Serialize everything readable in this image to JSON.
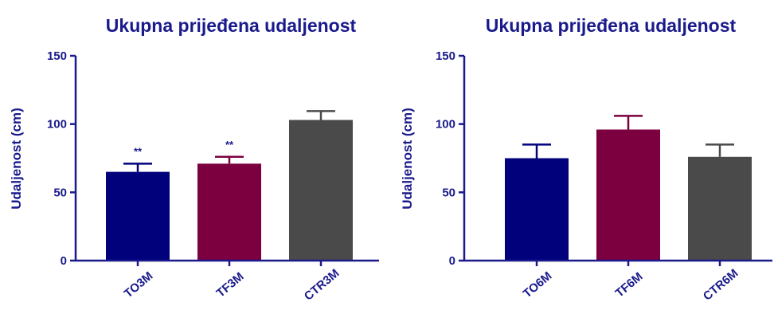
{
  "colors": {
    "text": "#1a1a8c",
    "axis": "#1a1a8c",
    "error": "#1a1a8c"
  },
  "chart_data": [
    {
      "type": "bar",
      "title": "Ukupna prijeđena udaljenost",
      "ylabel": "Udaljenost (cm)",
      "xlabel": "",
      "ylim": [
        0,
        150
      ],
      "yticks": [
        0,
        50,
        100,
        150
      ],
      "categories": [
        "TO3M",
        "TF3M",
        "CTR3M"
      ],
      "values": [
        65,
        71,
        103
      ],
      "errors": [
        6,
        5,
        6.5
      ],
      "annotations": [
        "**",
        "**",
        ""
      ],
      "bar_colors": [
        "#01017c",
        "#7c0040",
        "#4a4a4a"
      ],
      "grid": false,
      "legend": "none"
    },
    {
      "type": "bar",
      "title": "Ukupna prijeđena udaljenost",
      "ylabel": "Udaljenost (cm)",
      "xlabel": "",
      "ylim": [
        0,
        150
      ],
      "yticks": [
        0,
        50,
        100,
        150
      ],
      "categories": [
        "TO6M",
        "TF6M",
        "CTR6M"
      ],
      "values": [
        75,
        96,
        76
      ],
      "errors": [
        10,
        10,
        9
      ],
      "annotations": [
        "",
        "",
        ""
      ],
      "bar_colors": [
        "#01017c",
        "#7c0040",
        "#4a4a4a"
      ],
      "grid": false,
      "legend": "none"
    }
  ]
}
